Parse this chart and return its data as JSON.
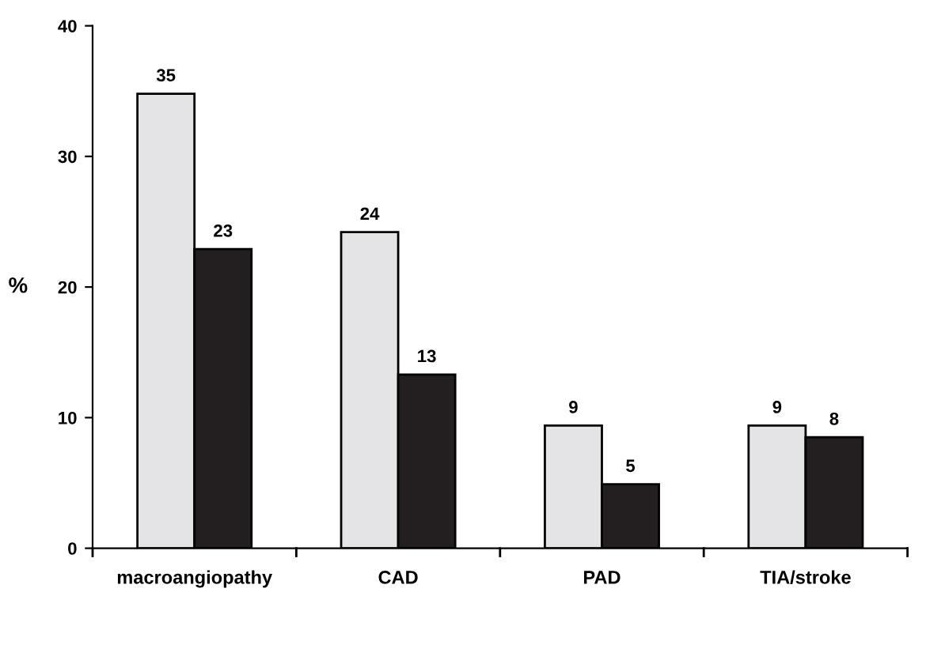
{
  "chart_data": {
    "type": "bar",
    "ylabel": "%",
    "categories": [
      "macroangiopathy",
      "CAD",
      "PAD",
      "TIA/stroke"
    ],
    "series": [
      {
        "color": "#e4e4e6",
        "values": [
          34.8,
          24.2,
          9.4,
          9.4
        ],
        "value_labels": [
          "35",
          "24",
          "9",
          "9"
        ]
      },
      {
        "color": "#231f20",
        "values": [
          22.9,
          13.3,
          4.9,
          8.5
        ],
        "value_labels": [
          "23",
          "13",
          "5",
          "8"
        ]
      }
    ],
    "ylim": [
      0,
      40
    ],
    "yticks": [
      0,
      10,
      20,
      30,
      40
    ],
    "grid": false,
    "legend": false
  }
}
